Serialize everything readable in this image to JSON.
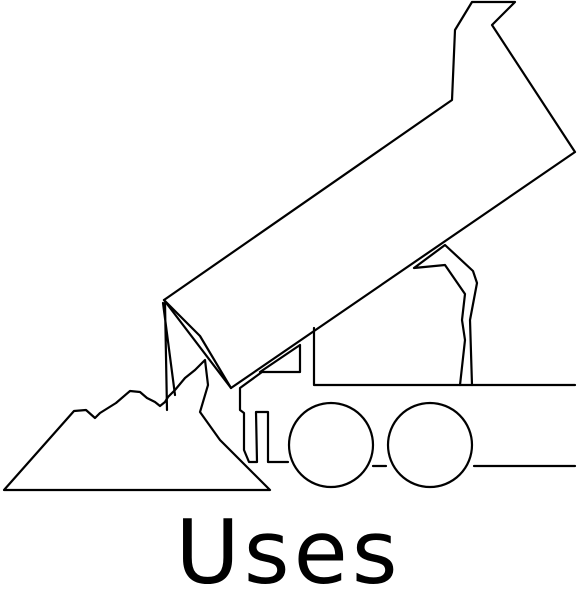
{
  "caption": "Uses",
  "illustration": {
    "subject": "dump-truck-unloading-icon",
    "stroke_color": "#000000",
    "fill_color": "#ffffff"
  }
}
